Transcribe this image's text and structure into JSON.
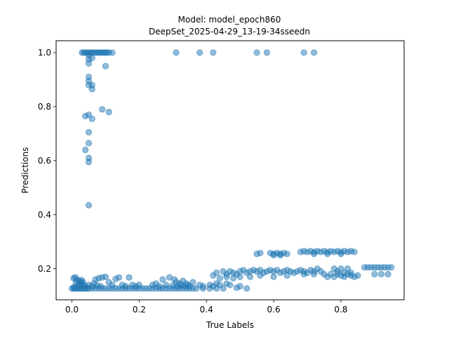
{
  "chart_data": {
    "type": "scatter",
    "title": "Model: model_epoch860",
    "subtitle": "DeepSet_2025-04-29_13-19-34sseedn",
    "xlabel": "True Labels",
    "ylabel": "Predictions",
    "xlim": [
      -0.047,
      0.988
    ],
    "ylim": [
      0.085,
      1.044
    ],
    "xticks": [
      "0.0",
      "0.2",
      "0.4",
      "0.6",
      "0.8"
    ],
    "yticks": [
      "0.2",
      "0.4",
      "0.6",
      "0.8",
      "1.0"
    ],
    "xtick_values": [
      0.0,
      0.2,
      0.4,
      0.6,
      0.8
    ],
    "ytick_values": [
      0.2,
      0.4,
      0.6,
      0.8,
      1.0
    ],
    "grid": false,
    "marker_color": "#1f77b4",
    "marker_alpha": 0.5,
    "points": [
      {
        "x": 0.0,
        "y": 0.127
      },
      {
        "x": 0.005,
        "y": 0.127
      },
      {
        "x": 0.01,
        "y": 0.127
      },
      {
        "x": 0.015,
        "y": 0.127
      },
      {
        "x": 0.02,
        "y": 0.127
      },
      {
        "x": 0.025,
        "y": 0.127
      },
      {
        "x": 0.03,
        "y": 0.127
      },
      {
        "x": 0.035,
        "y": 0.127
      },
      {
        "x": 0.04,
        "y": 0.127
      },
      {
        "x": 0.045,
        "y": 0.127
      },
      {
        "x": 0.05,
        "y": 0.127
      },
      {
        "x": 0.06,
        "y": 0.127
      },
      {
        "x": 0.07,
        "y": 0.127
      },
      {
        "x": 0.08,
        "y": 0.127
      },
      {
        "x": 0.09,
        "y": 0.127
      },
      {
        "x": 0.1,
        "y": 0.127
      },
      {
        "x": 0.11,
        "y": 0.127
      },
      {
        "x": 0.12,
        "y": 0.127
      },
      {
        "x": 0.13,
        "y": 0.127
      },
      {
        "x": 0.14,
        "y": 0.127
      },
      {
        "x": 0.15,
        "y": 0.127
      },
      {
        "x": 0.16,
        "y": 0.127
      },
      {
        "x": 0.17,
        "y": 0.127
      },
      {
        "x": 0.18,
        "y": 0.127
      },
      {
        "x": 0.19,
        "y": 0.127
      },
      {
        "x": 0.2,
        "y": 0.127
      },
      {
        "x": 0.21,
        "y": 0.127
      },
      {
        "x": 0.22,
        "y": 0.127
      },
      {
        "x": 0.23,
        "y": 0.127
      },
      {
        "x": 0.24,
        "y": 0.127
      },
      {
        "x": 0.25,
        "y": 0.127
      },
      {
        "x": 0.26,
        "y": 0.127
      },
      {
        "x": 0.27,
        "y": 0.127
      },
      {
        "x": 0.28,
        "y": 0.127
      },
      {
        "x": 0.29,
        "y": 0.127
      },
      {
        "x": 0.3,
        "y": 0.127
      },
      {
        "x": 0.31,
        "y": 0.127
      },
      {
        "x": 0.32,
        "y": 0.127
      },
      {
        "x": 0.33,
        "y": 0.127
      },
      {
        "x": 0.34,
        "y": 0.127
      },
      {
        "x": 0.35,
        "y": 0.127
      },
      {
        "x": 0.36,
        "y": 0.127
      },
      {
        "x": 0.37,
        "y": 0.127
      },
      {
        "x": 0.39,
        "y": 0.127
      },
      {
        "x": 0.41,
        "y": 0.127
      },
      {
        "x": 0.43,
        "y": 0.127
      },
      {
        "x": 0.45,
        "y": 0.127
      },
      {
        "x": 0.52,
        "y": 0.127
      },
      {
        "x": 0.005,
        "y": 0.165
      },
      {
        "x": 0.01,
        "y": 0.168
      },
      {
        "x": 0.015,
        "y": 0.16
      },
      {
        "x": 0.02,
        "y": 0.155
      },
      {
        "x": 0.025,
        "y": 0.15
      },
      {
        "x": 0.03,
        "y": 0.145
      },
      {
        "x": 0.035,
        "y": 0.14
      },
      {
        "x": 0.04,
        "y": 0.135
      },
      {
        "x": 0.012,
        "y": 0.148
      },
      {
        "x": 0.018,
        "y": 0.138
      },
      {
        "x": 0.022,
        "y": 0.142
      },
      {
        "x": 0.028,
        "y": 0.158
      },
      {
        "x": 0.006,
        "y": 0.132
      },
      {
        "x": 0.032,
        "y": 0.152
      },
      {
        "x": 0.05,
        "y": 0.14
      },
      {
        "x": 0.06,
        "y": 0.135
      },
      {
        "x": 0.065,
        "y": 0.145
      },
      {
        "x": 0.07,
        "y": 0.16
      },
      {
        "x": 0.075,
        "y": 0.138
      },
      {
        "x": 0.08,
        "y": 0.165
      },
      {
        "x": 0.085,
        "y": 0.135
      },
      {
        "x": 0.09,
        "y": 0.168
      },
      {
        "x": 0.1,
        "y": 0.17
      },
      {
        "x": 0.11,
        "y": 0.15
      },
      {
        "x": 0.12,
        "y": 0.14
      },
      {
        "x": 0.13,
        "y": 0.162
      },
      {
        "x": 0.14,
        "y": 0.168
      },
      {
        "x": 0.15,
        "y": 0.14
      },
      {
        "x": 0.16,
        "y": 0.135
      },
      {
        "x": 0.17,
        "y": 0.168
      },
      {
        "x": 0.18,
        "y": 0.14
      },
      {
        "x": 0.19,
        "y": 0.135
      },
      {
        "x": 0.2,
        "y": 0.14
      },
      {
        "x": 0.24,
        "y": 0.14
      },
      {
        "x": 0.25,
        "y": 0.145
      },
      {
        "x": 0.26,
        "y": 0.135
      },
      {
        "x": 0.27,
        "y": 0.16
      },
      {
        "x": 0.28,
        "y": 0.14
      },
      {
        "x": 0.29,
        "y": 0.168
      },
      {
        "x": 0.3,
        "y": 0.138
      },
      {
        "x": 0.305,
        "y": 0.16
      },
      {
        "x": 0.31,
        "y": 0.15
      },
      {
        "x": 0.315,
        "y": 0.135
      },
      {
        "x": 0.32,
        "y": 0.145
      },
      {
        "x": 0.325,
        "y": 0.14
      },
      {
        "x": 0.33,
        "y": 0.155
      },
      {
        "x": 0.335,
        "y": 0.135
      },
      {
        "x": 0.34,
        "y": 0.145
      },
      {
        "x": 0.345,
        "y": 0.14
      },
      {
        "x": 0.35,
        "y": 0.135
      },
      {
        "x": 0.36,
        "y": 0.15
      },
      {
        "x": 0.38,
        "y": 0.14
      },
      {
        "x": 0.39,
        "y": 0.135
      },
      {
        "x": 0.41,
        "y": 0.14
      },
      {
        "x": 0.42,
        "y": 0.135
      },
      {
        "x": 0.43,
        "y": 0.145
      },
      {
        "x": 0.44,
        "y": 0.14
      },
      {
        "x": 0.42,
        "y": 0.175
      },
      {
        "x": 0.43,
        "y": 0.185
      },
      {
        "x": 0.44,
        "y": 0.165
      },
      {
        "x": 0.45,
        "y": 0.19
      },
      {
        "x": 0.46,
        "y": 0.18
      },
      {
        "x": 0.47,
        "y": 0.19
      },
      {
        "x": 0.48,
        "y": 0.185
      },
      {
        "x": 0.49,
        "y": 0.18
      },
      {
        "x": 0.5,
        "y": 0.19
      },
      {
        "x": 0.51,
        "y": 0.195
      },
      {
        "x": 0.52,
        "y": 0.185
      },
      {
        "x": 0.53,
        "y": 0.19
      },
      {
        "x": 0.54,
        "y": 0.195
      },
      {
        "x": 0.55,
        "y": 0.19
      },
      {
        "x": 0.56,
        "y": 0.195
      },
      {
        "x": 0.57,
        "y": 0.185
      },
      {
        "x": 0.58,
        "y": 0.19
      },
      {
        "x": 0.59,
        "y": 0.195
      },
      {
        "x": 0.6,
        "y": 0.19
      },
      {
        "x": 0.61,
        "y": 0.195
      },
      {
        "x": 0.62,
        "y": 0.185
      },
      {
        "x": 0.63,
        "y": 0.19
      },
      {
        "x": 0.64,
        "y": 0.195
      },
      {
        "x": 0.65,
        "y": 0.19
      },
      {
        "x": 0.66,
        "y": 0.185
      },
      {
        "x": 0.67,
        "y": 0.19
      },
      {
        "x": 0.68,
        "y": 0.195
      },
      {
        "x": 0.69,
        "y": 0.19
      },
      {
        "x": 0.7,
        "y": 0.185
      },
      {
        "x": 0.71,
        "y": 0.195
      },
      {
        "x": 0.72,
        "y": 0.19
      },
      {
        "x": 0.46,
        "y": 0.17
      },
      {
        "x": 0.48,
        "y": 0.165
      },
      {
        "x": 0.5,
        "y": 0.17
      },
      {
        "x": 0.53,
        "y": 0.17
      },
      {
        "x": 0.56,
        "y": 0.175
      },
      {
        "x": 0.6,
        "y": 0.17
      },
      {
        "x": 0.64,
        "y": 0.175
      },
      {
        "x": 0.69,
        "y": 0.18
      },
      {
        "x": 0.72,
        "y": 0.18
      },
      {
        "x": 0.47,
        "y": 0.14
      },
      {
        "x": 0.49,
        "y": 0.13
      },
      {
        "x": 0.5,
        "y": 0.135
      },
      {
        "x": 0.46,
        "y": 0.145
      },
      {
        "x": 0.55,
        "y": 0.255
      },
      {
        "x": 0.56,
        "y": 0.258
      },
      {
        "x": 0.59,
        "y": 0.258
      },
      {
        "x": 0.6,
        "y": 0.255
      },
      {
        "x": 0.61,
        "y": 0.258
      },
      {
        "x": 0.62,
        "y": 0.255
      },
      {
        "x": 0.63,
        "y": 0.258
      },
      {
        "x": 0.64,
        "y": 0.255
      },
      {
        "x": 0.6,
        "y": 0.25
      },
      {
        "x": 0.62,
        "y": 0.25
      },
      {
        "x": 0.68,
        "y": 0.262
      },
      {
        "x": 0.69,
        "y": 0.265
      },
      {
        "x": 0.7,
        "y": 0.262
      },
      {
        "x": 0.71,
        "y": 0.265
      },
      {
        "x": 0.72,
        "y": 0.262
      },
      {
        "x": 0.73,
        "y": 0.265
      },
      {
        "x": 0.74,
        "y": 0.262
      },
      {
        "x": 0.75,
        "y": 0.265
      },
      {
        "x": 0.76,
        "y": 0.262
      },
      {
        "x": 0.77,
        "y": 0.265
      },
      {
        "x": 0.78,
        "y": 0.262
      },
      {
        "x": 0.79,
        "y": 0.265
      },
      {
        "x": 0.8,
        "y": 0.262
      },
      {
        "x": 0.81,
        "y": 0.265
      },
      {
        "x": 0.82,
        "y": 0.262
      },
      {
        "x": 0.83,
        "y": 0.265
      },
      {
        "x": 0.84,
        "y": 0.262
      },
      {
        "x": 0.72,
        "y": 0.255
      },
      {
        "x": 0.76,
        "y": 0.255
      },
      {
        "x": 0.8,
        "y": 0.255
      },
      {
        "x": 0.73,
        "y": 0.2
      },
      {
        "x": 0.74,
        "y": 0.19
      },
      {
        "x": 0.75,
        "y": 0.18
      },
      {
        "x": 0.76,
        "y": 0.17
      },
      {
        "x": 0.77,
        "y": 0.18
      },
      {
        "x": 0.78,
        "y": 0.17
      },
      {
        "x": 0.79,
        "y": 0.18
      },
      {
        "x": 0.8,
        "y": 0.175
      },
      {
        "x": 0.81,
        "y": 0.17
      },
      {
        "x": 0.82,
        "y": 0.18
      },
      {
        "x": 0.83,
        "y": 0.175
      },
      {
        "x": 0.84,
        "y": 0.17
      },
      {
        "x": 0.85,
        "y": 0.175
      },
      {
        "x": 0.78,
        "y": 0.2
      },
      {
        "x": 0.8,
        "y": 0.2
      },
      {
        "x": 0.82,
        "y": 0.2
      },
      {
        "x": 0.79,
        "y": 0.19
      },
      {
        "x": 0.81,
        "y": 0.185
      },
      {
        "x": 0.83,
        "y": 0.185
      },
      {
        "x": 0.87,
        "y": 0.205
      },
      {
        "x": 0.88,
        "y": 0.205
      },
      {
        "x": 0.89,
        "y": 0.205
      },
      {
        "x": 0.9,
        "y": 0.205
      },
      {
        "x": 0.91,
        "y": 0.205
      },
      {
        "x": 0.92,
        "y": 0.205
      },
      {
        "x": 0.93,
        "y": 0.205
      },
      {
        "x": 0.94,
        "y": 0.205
      },
      {
        "x": 0.95,
        "y": 0.205
      },
      {
        "x": 0.9,
        "y": 0.18
      },
      {
        "x": 0.92,
        "y": 0.18
      },
      {
        "x": 0.94,
        "y": 0.18
      },
      {
        "x": 0.03,
        "y": 1.0
      },
      {
        "x": 0.035,
        "y": 1.0
      },
      {
        "x": 0.04,
        "y": 1.0
      },
      {
        "x": 0.045,
        "y": 1.0
      },
      {
        "x": 0.05,
        "y": 1.0
      },
      {
        "x": 0.055,
        "y": 1.0
      },
      {
        "x": 0.06,
        "y": 1.0
      },
      {
        "x": 0.065,
        "y": 1.0
      },
      {
        "x": 0.07,
        "y": 1.0
      },
      {
        "x": 0.075,
        "y": 1.0
      },
      {
        "x": 0.08,
        "y": 1.0
      },
      {
        "x": 0.085,
        "y": 1.0
      },
      {
        "x": 0.09,
        "y": 1.0
      },
      {
        "x": 0.095,
        "y": 1.0
      },
      {
        "x": 0.1,
        "y": 1.0
      },
      {
        "x": 0.105,
        "y": 1.0
      },
      {
        "x": 0.11,
        "y": 1.0
      },
      {
        "x": 0.12,
        "y": 1.0
      },
      {
        "x": 0.31,
        "y": 1.0
      },
      {
        "x": 0.38,
        "y": 1.0
      },
      {
        "x": 0.42,
        "y": 1.0
      },
      {
        "x": 0.55,
        "y": 1.0
      },
      {
        "x": 0.58,
        "y": 1.0
      },
      {
        "x": 0.69,
        "y": 1.0
      },
      {
        "x": 0.72,
        "y": 1.0
      },
      {
        "x": 0.05,
        "y": 0.99
      },
      {
        "x": 0.05,
        "y": 0.975
      },
      {
        "x": 0.05,
        "y": 0.96
      },
      {
        "x": 0.06,
        "y": 0.98
      },
      {
        "x": 0.1,
        "y": 0.95
      },
      {
        "x": 0.05,
        "y": 0.91
      },
      {
        "x": 0.05,
        "y": 0.895
      },
      {
        "x": 0.05,
        "y": 0.88
      },
      {
        "x": 0.06,
        "y": 0.88
      },
      {
        "x": 0.06,
        "y": 0.865
      },
      {
        "x": 0.09,
        "y": 0.79
      },
      {
        "x": 0.11,
        "y": 0.78
      },
      {
        "x": 0.04,
        "y": 0.765
      },
      {
        "x": 0.05,
        "y": 0.77
      },
      {
        "x": 0.06,
        "y": 0.755
      },
      {
        "x": 0.05,
        "y": 0.705
      },
      {
        "x": 0.05,
        "y": 0.665
      },
      {
        "x": 0.04,
        "y": 0.64
      },
      {
        "x": 0.05,
        "y": 0.61
      },
      {
        "x": 0.05,
        "y": 0.595
      },
      {
        "x": 0.05,
        "y": 0.435
      }
    ]
  }
}
